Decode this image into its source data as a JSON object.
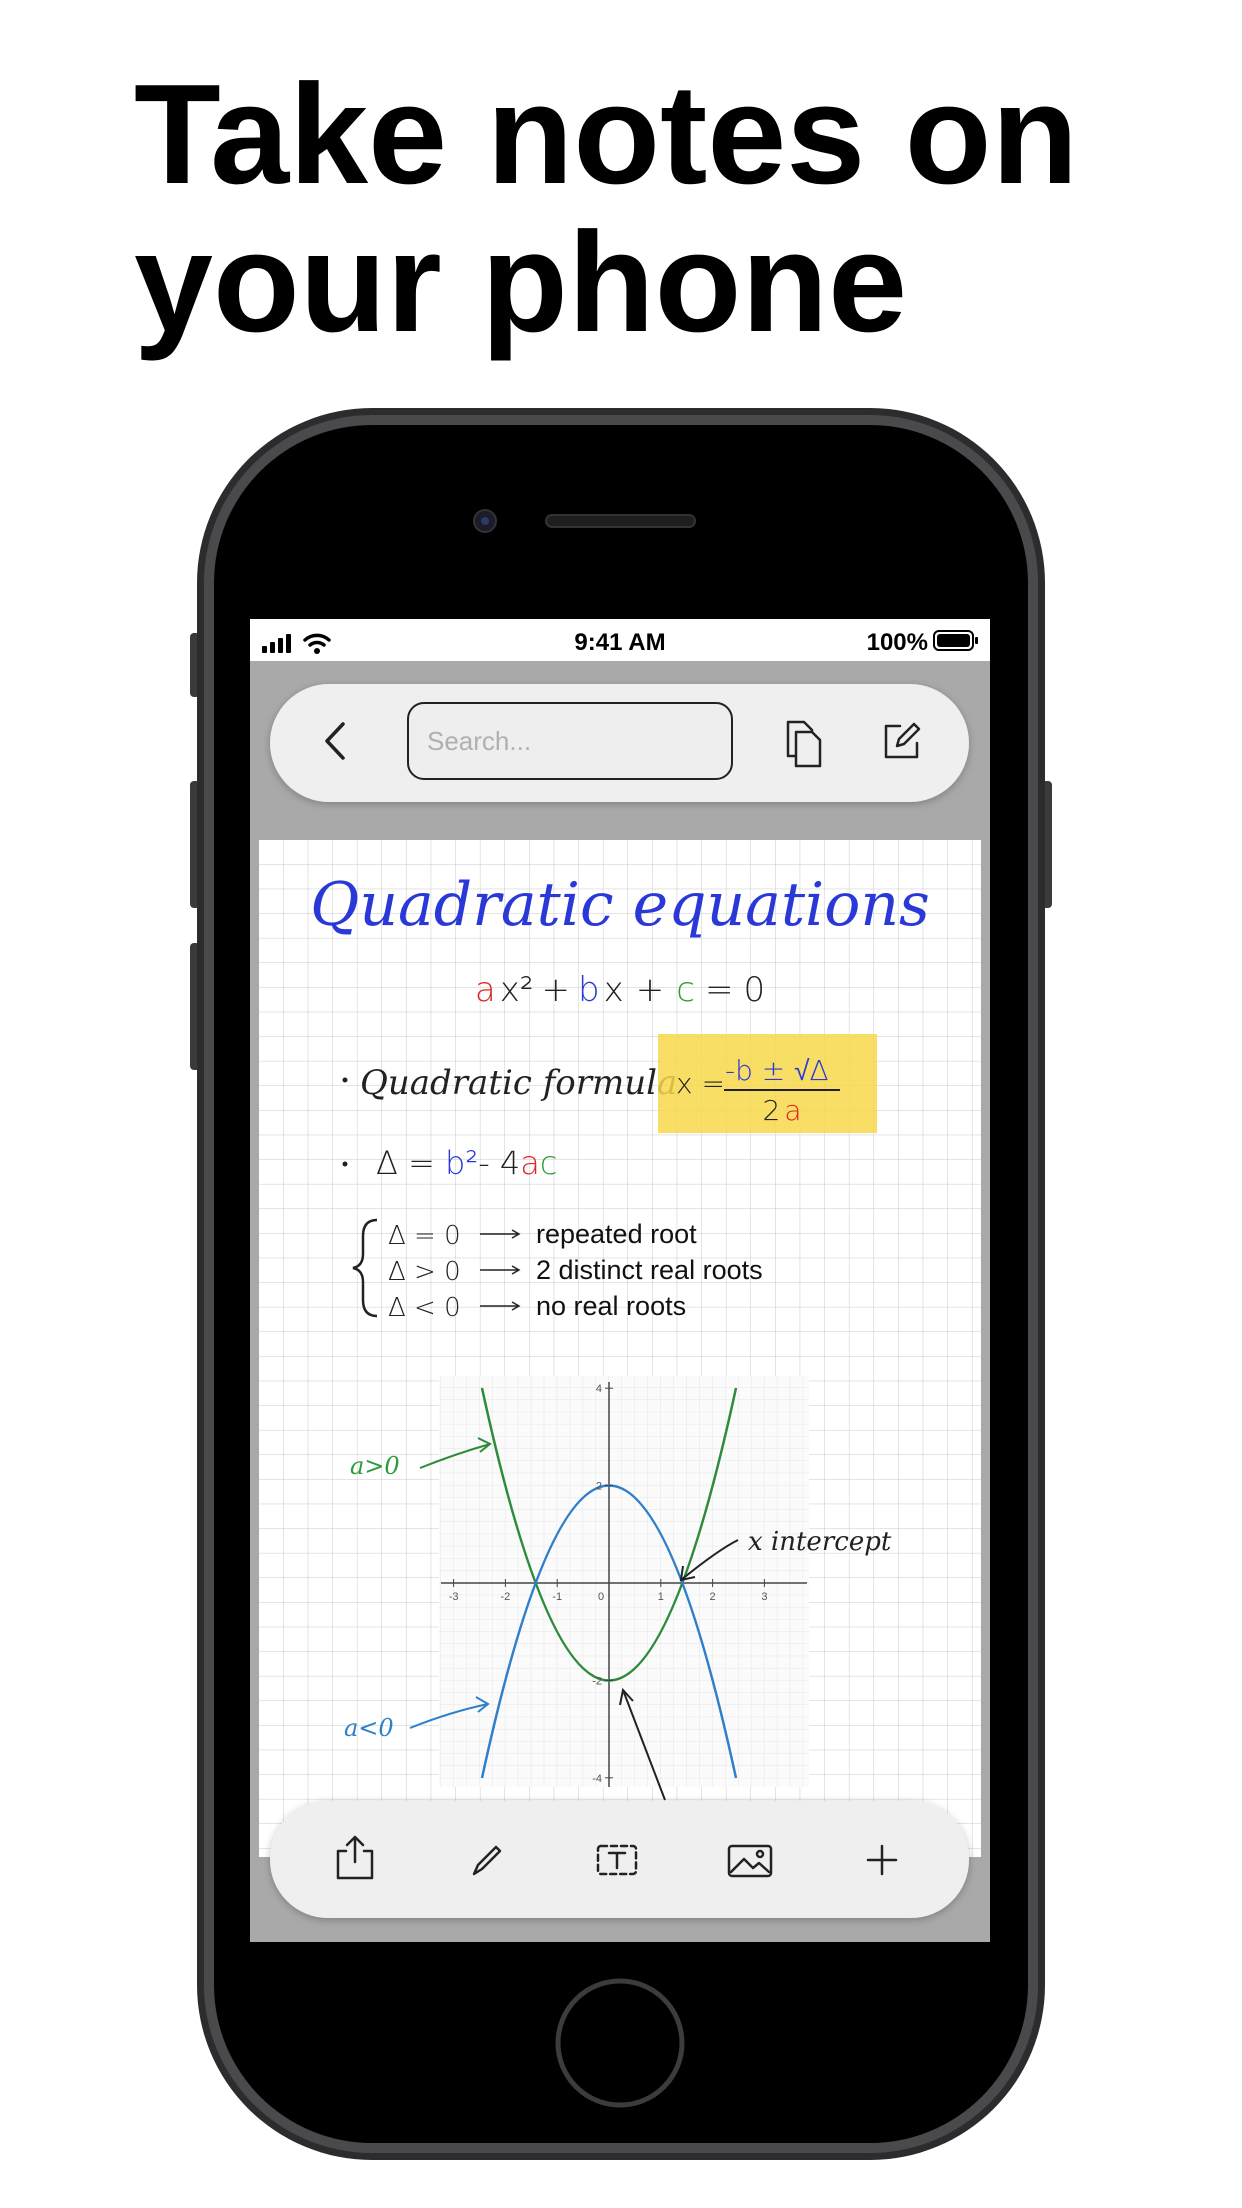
{
  "headline": {
    "line1": "Take notes on",
    "line2": "your phone"
  },
  "status_bar": {
    "time": "9:41 AM",
    "battery": "100%"
  },
  "toolbar": {
    "search_placeholder": "Search..."
  },
  "note": {
    "title": "Quadratic equations",
    "equation": [
      "a",
      "x²",
      "+",
      "b",
      "x",
      "+",
      "c",
      "=",
      "0"
    ],
    "formula_label": "Quadratic formula",
    "formula": {
      "lhs": "x =",
      "numerator": "-b ± √Δ",
      "denominator": [
        "2",
        "a"
      ]
    },
    "discriminant": [
      "Δ = ",
      "b²",
      "- 4",
      "a",
      "c"
    ],
    "cases": [
      {
        "condition": "Δ = 0",
        "result": "repeated root"
      },
      {
        "condition": "Δ > 0",
        "result": "2 distinct real roots"
      },
      {
        "condition": "Δ < 0",
        "result": "no real roots"
      }
    ],
    "graph": {
      "x_ticks": [
        -3,
        -2,
        -1,
        0,
        1,
        2,
        3
      ],
      "y_ticks": [
        4,
        2,
        -2,
        -4
      ],
      "label_positive": "a>0",
      "label_negative": "a<0",
      "label_intercept": "x intercept"
    }
  }
}
